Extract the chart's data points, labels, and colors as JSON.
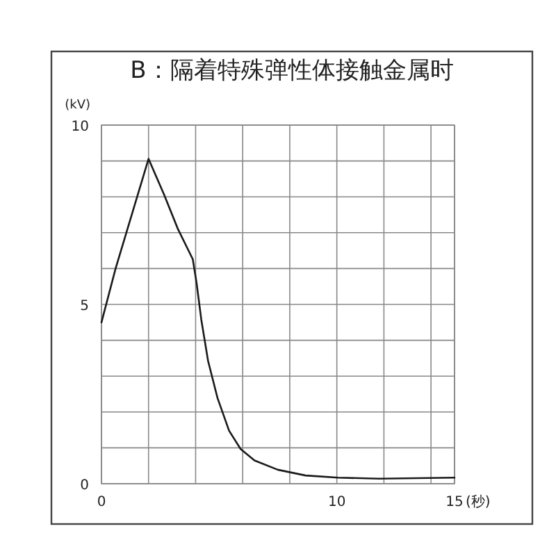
{
  "chart_data": {
    "type": "line",
    "title": "B：隔着特殊弹性体接触金属时",
    "xlabel": "(秒)",
    "ylabel": "(kV)",
    "xlim": [
      0,
      15
    ],
    "ylim": [
      0,
      10
    ],
    "xticks": [
      0,
      {
        "value": 2,
        "label": null
      },
      {
        "value": 4,
        "label": null
      },
      {
        "value": 6,
        "label": null
      },
      {
        "value": 8,
        "label": null
      },
      10,
      {
        "value": 12,
        "label": null
      },
      {
        "value": 14,
        "label": null
      },
      15
    ],
    "yticks": [
      0,
      {
        "value": 1,
        "label": null
      },
      {
        "value": 2,
        "label": null
      },
      {
        "value": 3,
        "label": null
      },
      {
        "value": 4,
        "label": null
      },
      5,
      {
        "value": 6,
        "label": null
      },
      {
        "value": 7,
        "label": null
      },
      {
        "value": 8,
        "label": null
      },
      {
        "value": 9,
        "label": null
      },
      10
    ],
    "grid": true,
    "line_style": "solid",
    "series": [
      {
        "color": "#1a1a1a",
        "x": [
          0,
          0.6,
          2.0,
          2.66,
          3.25,
          3.88,
          4.04,
          4.24,
          4.53,
          4.93,
          5.42,
          5.91,
          6.5,
          7.49,
          8.67,
          10.05,
          11.8,
          15
        ],
        "values": [
          4.5,
          6.0,
          9.06,
          8.06,
          7.1,
          6.26,
          5.6,
          4.58,
          3.42,
          2.39,
          1.48,
          0.97,
          0.65,
          0.39,
          0.23,
          0.17,
          0.14,
          0.17
        ]
      }
    ]
  }
}
